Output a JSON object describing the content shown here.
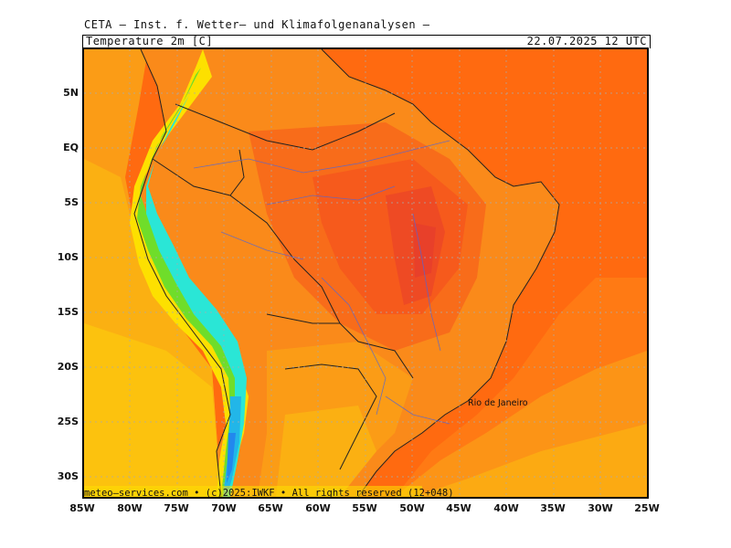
{
  "header": {
    "title": "CETA – Inst. f. Wetter– und Klimafolgenanalysen –",
    "variable": "Temperature 2m [C]",
    "valid_time": "22.07.2025 12 UTC"
  },
  "axes": {
    "latitude_labels": [
      "5N",
      "EQ",
      "5S",
      "10S",
      "15S",
      "20S",
      "25S",
      "30S"
    ],
    "longitude_labels": [
      "85W",
      "80W",
      "75W",
      "70W",
      "65W",
      "60W",
      "55W",
      "50W",
      "45W",
      "40W",
      "35W",
      "30W",
      "25W"
    ]
  },
  "places": {
    "city": "Rio de Janeiro"
  },
  "footer": {
    "credits": "meteo–services.com • (c)2025:IWKF • All rights reserved (12+048)"
  },
  "colors": {
    "ocean_warm": "#ff6a10",
    "hot": "#f65a1c",
    "very_hot": "#e8402a",
    "warm": "#fa8a1a",
    "mild": "#fbb012",
    "cool": "#fde000",
    "cold_green": "#6fdd2a",
    "cold_cyan": "#2ae6d6",
    "coldest": "#2288ee",
    "rivers": "#5066d8",
    "borders": "#222222"
  }
}
